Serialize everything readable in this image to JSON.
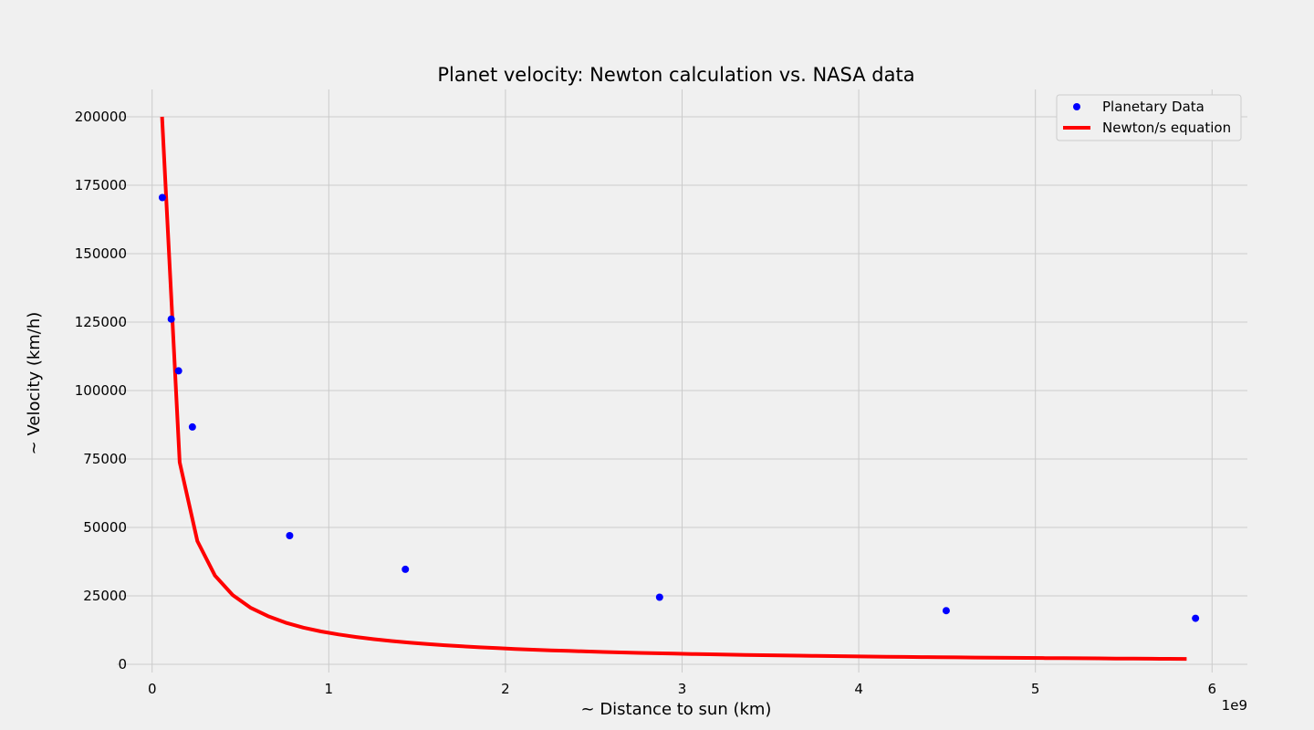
{
  "chart_data": {
    "type": "scatter",
    "title": "Planet velocity: Newton calculation vs. NASA data",
    "xlabel": "~ Distance to sun (km)",
    "ylabel": "~ Velocity (km/h)",
    "x_offset_text": "1e9",
    "xlim": [
      -200000000.0,
      6200000000.0
    ],
    "ylim": [
      -3000,
      210000
    ],
    "x_ticks": [
      0,
      1000000000.0,
      2000000000.0,
      3000000000.0,
      4000000000.0,
      5000000000.0,
      6000000000.0
    ],
    "x_tick_labels": [
      "0",
      "1",
      "2",
      "3",
      "4",
      "5",
      "6"
    ],
    "y_ticks": [
      0,
      25000,
      50000,
      75000,
      100000,
      125000,
      150000,
      175000,
      200000
    ],
    "y_tick_labels": [
      "0",
      "25000",
      "50000",
      "75000",
      "100000",
      "125000",
      "150000",
      "175000",
      "200000"
    ],
    "grid": true,
    "legend_position": "top-right",
    "series": [
      {
        "name": "Planetary Data",
        "kind": "scatter",
        "color": "#0000ff",
        "x": [
          57900000,
          108200000,
          149600000,
          227900000,
          778600000,
          1433500000,
          2872500000,
          4495100000,
          5906400000
        ],
        "y": [
          170500,
          126100,
          107200,
          86700,
          47000,
          34700,
          24500,
          19600,
          16800
        ]
      },
      {
        "name": "Newton/s equation",
        "kind": "line",
        "color": "#ff0000",
        "x": [
          56000000,
          156000000,
          256000000,
          356000000,
          456000000,
          556000000,
          656000000,
          756000000,
          856000000,
          956000000,
          1056000000,
          1156000000,
          1256000000,
          1356000000,
          1456000000,
          1556000000,
          1656000000,
          1756000000,
          1856000000,
          1956000000,
          2056000000,
          2156000000,
          2256000000,
          2356000000,
          2456000000,
          2556000000,
          2656000000,
          2756000000,
          2856000000,
          2956000000,
          3056000000,
          3156000000,
          3256000000,
          3356000000,
          3456000000,
          3556000000,
          3656000000,
          3756000000,
          3856000000,
          3956000000,
          4056000000,
          4156000000,
          4256000000,
          4356000000,
          4456000000,
          4556000000,
          4656000000,
          4756000000,
          4856000000,
          4956000000,
          5056000000,
          5156000000,
          5256000000,
          5356000000,
          5456000000,
          5556000000,
          5656000000,
          5756000000,
          5856000000
        ],
        "y": [
          200000,
          73800,
          45000,
          32400,
          25300,
          20700,
          17600,
          15200,
          13400,
          12000,
          10900,
          9960,
          9170,
          8490,
          7910,
          7400,
          6950,
          6560,
          6200,
          5890,
          5600,
          5340,
          5100,
          4890,
          4690,
          4500,
          4340,
          4180,
          4030,
          3900,
          3770,
          3650,
          3540,
          3430,
          3330,
          3240,
          3150,
          3070,
          2990,
          2910,
          2840,
          2770,
          2710,
          2640,
          2590,
          2530,
          2470,
          2420,
          2370,
          2320,
          2280,
          2230,
          2190,
          2150,
          2110,
          2070,
          2040,
          2000,
          1970
        ]
      }
    ]
  }
}
